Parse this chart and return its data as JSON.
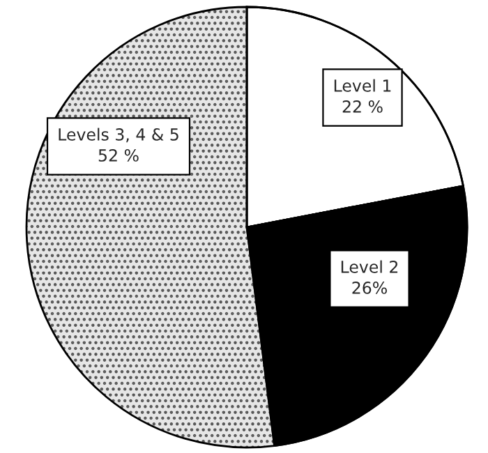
{
  "chart_data": {
    "type": "pie",
    "categories": [
      "Level 1",
      "Level 2",
      "Levels 3, 4 & 5"
    ],
    "values": [
      22,
      26,
      52
    ],
    "value_labels": [
      "22 %",
      "26%",
      "52 %"
    ],
    "colors": [
      "#ffffff",
      "#000000",
      "#e6e6e6"
    ]
  }
}
